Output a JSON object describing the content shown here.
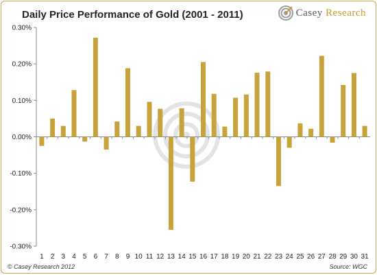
{
  "header": {
    "title": "Daily Price Performance of Gold (2001 - 2011)",
    "logo_text_1": "Casey",
    "logo_text_2": "Research"
  },
  "footer": {
    "copyright": "© Casey Research 2012",
    "source": "Source: WGC"
  },
  "colors": {
    "bar": "#c8a23a",
    "axis": "#888888",
    "grid": "#dddddd"
  },
  "chart_data": {
    "type": "bar",
    "title": "Daily Price Performance of Gold (2001 - 2011)",
    "xlabel": "",
    "ylabel": "",
    "ylim": [
      -0.3,
      0.3
    ],
    "y_ticks": [
      "-0.30%",
      "-0.20%",
      "-0.10%",
      "0.00%",
      "0.10%",
      "0.20%",
      "0.30%"
    ],
    "categories": [
      "1",
      "2",
      "3",
      "4",
      "5",
      "6",
      "7",
      "8",
      "9",
      "10",
      "11",
      "12",
      "13",
      "14",
      "15",
      "16",
      "17",
      "18",
      "19",
      "20",
      "21",
      "22",
      "23",
      "24",
      "25",
      "26",
      "27",
      "28",
      "29",
      "30",
      "31"
    ],
    "values": [
      -0.025,
      0.05,
      0.03,
      0.128,
      -0.013,
      0.272,
      -0.035,
      0.042,
      0.188,
      0.03,
      0.096,
      0.077,
      -0.255,
      0.078,
      -0.123,
      0.205,
      0.118,
      0.028,
      0.107,
      0.116,
      0.176,
      0.179,
      -0.135,
      -0.03,
      0.037,
      0.022,
      0.222,
      -0.016,
      0.142,
      0.175,
      0.03
    ],
    "grid": false,
    "legend": "none"
  }
}
